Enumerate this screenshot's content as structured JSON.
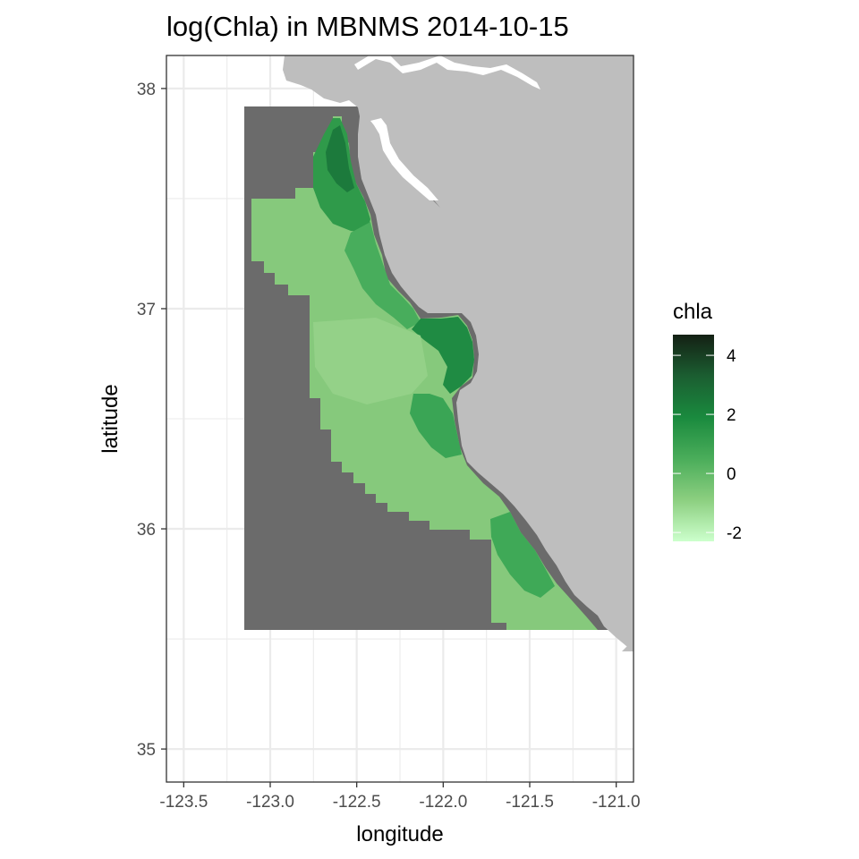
{
  "chart_data": {
    "type": "heatmap",
    "title": "log(Chla) in MBNMS 2014-10-15",
    "xlabel": "longitude",
    "ylabel": "latitude",
    "xlim": [
      -123.6,
      -120.9
    ],
    "ylim": [
      34.85,
      38.15
    ],
    "x_ticks": [
      -123.5,
      -123.0,
      -122.5,
      -122.0,
      -121.5,
      -121.0
    ],
    "x_tick_labels": [
      "-123.5",
      "-123.0",
      "-122.5",
      "-122.0",
      "-121.5",
      "-121.0"
    ],
    "y_ticks": [
      35,
      36,
      37,
      38
    ],
    "y_tick_labels": [
      "35",
      "36",
      "37",
      "38"
    ],
    "grid": true,
    "legend": {
      "title": "chla",
      "position": "right",
      "range": [
        -2.3,
        4.7
      ],
      "breaks": [
        4,
        2,
        0,
        -2
      ],
      "break_labels": [
        "4",
        "2",
        "0",
        "-2"
      ],
      "colors": [
        "#ccffcc",
        "#8ccf80",
        "#4aad5a",
        "#1a8a3e",
        "#1b5e31",
        "#142014"
      ]
    },
    "colors": {
      "land": "#bebebe",
      "no_data_region": "#6b6b6b",
      "grid": "#ebebeb",
      "panel_border": "#333333"
    },
    "data_region": {
      "lon_range": [
        -123.18,
        -121.08
      ],
      "lat_range": [
        35.55,
        37.92
      ]
    },
    "cells": [
      {
        "lon": -122.65,
        "lat": 37.75,
        "chla": 2.2
      },
      {
        "lon": -122.55,
        "lat": 37.55,
        "chla": 2.4
      },
      {
        "lon": -122.75,
        "lat": 37.55,
        "chla": 1.6
      },
      {
        "lon": -122.95,
        "lat": 37.4,
        "chla": 0.2
      },
      {
        "lon": -123.05,
        "lat": 37.3,
        "chla": -0.5
      },
      {
        "lon": -122.55,
        "lat": 37.25,
        "chla": 1.5
      },
      {
        "lon": -122.3,
        "lat": 37.1,
        "chla": 1.2
      },
      {
        "lon": -122.05,
        "lat": 36.95,
        "chla": 1.9
      },
      {
        "lon": -121.85,
        "lat": 36.85,
        "chla": 1.8
      },
      {
        "lon": -122.45,
        "lat": 36.75,
        "chla": -0.9
      },
      {
        "lon": -122.15,
        "lat": 36.7,
        "chla": -0.4
      },
      {
        "lon": -121.9,
        "lat": 36.6,
        "chla": 1.3
      },
      {
        "lon": -122.4,
        "lat": 36.45,
        "chla": -0.7
      },
      {
        "lon": -122.0,
        "lat": 36.4,
        "chla": 1.1
      },
      {
        "lon": -122.25,
        "lat": 36.25,
        "chla": -0.3
      },
      {
        "lon": -121.75,
        "lat": 36.15,
        "chla": 0.5
      },
      {
        "lon": -121.5,
        "lat": 35.95,
        "chla": 1.0
      },
      {
        "lon": -121.45,
        "lat": 35.8,
        "chla": 1.2
      },
      {
        "lon": -121.6,
        "lat": 35.7,
        "chla": 0.3
      },
      {
        "lon": -121.3,
        "lat": 35.62,
        "chla": -0.1
      }
    ]
  }
}
